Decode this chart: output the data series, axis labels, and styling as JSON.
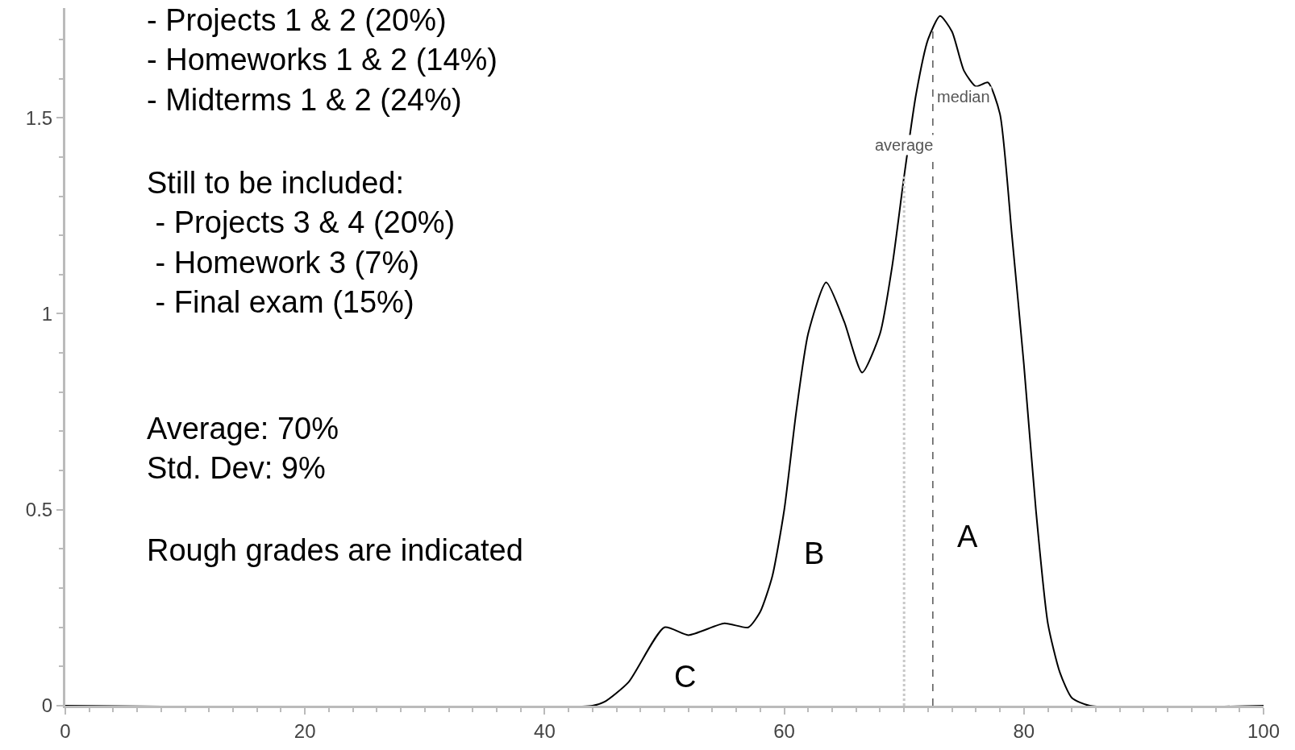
{
  "chart_data": {
    "type": "line",
    "x": [
      0,
      44,
      45,
      47,
      50,
      52,
      55,
      57,
      58,
      59,
      60,
      61,
      62,
      63.5,
      65,
      66.5,
      68,
      69,
      70,
      71,
      72,
      73,
      74,
      75,
      76,
      77,
      78,
      79,
      80,
      81,
      82,
      83,
      84,
      85.5,
      100
    ],
    "series": [
      {
        "color": "#000000",
        "values": [
          0,
          0,
          0.01,
          0.06,
          0.2,
          0.18,
          0.21,
          0.2,
          0.24,
          0.33,
          0.5,
          0.75,
          0.95,
          1.08,
          0.98,
          0.85,
          0.95,
          1.12,
          1.35,
          1.56,
          1.7,
          1.76,
          1.72,
          1.62,
          1.58,
          1.59,
          1.51,
          1.2,
          0.87,
          0.5,
          0.21,
          0.085,
          0.02,
          0,
          0
        ]
      }
    ],
    "xlim": [
      0,
      100
    ],
    "xticks": [
      0,
      20,
      40,
      60,
      80,
      100
    ],
    "ylim": [
      0,
      1.78
    ],
    "yticks": [
      0,
      0.5,
      1,
      1.5
    ],
    "marker": "none",
    "line_style": "solid",
    "ref_lines": [
      {
        "axis": "x",
        "value": 70,
        "label": "average",
        "color": "#c8c8c8",
        "line_style": "dotted"
      },
      {
        "axis": "x",
        "value": 72.4,
        "label": "median",
        "color": "#555555",
        "line_style": "dashed"
      }
    ],
    "annotations": [
      "- Projects 1 & 2 (20%)\n- Homeworks 1 & 2 (14%)\n- Midterms 1 & 2 (24%)",
      "Still to be included:\n - Projects 3 & 4 (20%)\n - Homework 3 (7%)\n - Final exam (15%)",
      "Average: 70%\nStd. Dev: 9%",
      "Rough grades are indicated",
      "C",
      "B",
      "A"
    ]
  }
}
